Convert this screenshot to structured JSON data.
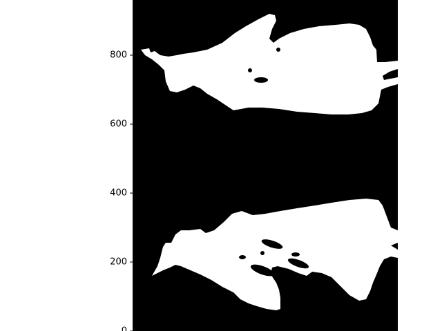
{
  "chart_data": {
    "type": "heatmap",
    "title": "",
    "xlabel": "",
    "ylabel": "",
    "colormap": [
      "#000000",
      "#ffffff"
    ],
    "ylim": [
      0,
      960
    ],
    "y_ticks": [
      {
        "value": 0,
        "label": "0"
      },
      {
        "value": 200,
        "label": "200"
      },
      {
        "value": 400,
        "label": "400"
      },
      {
        "value": 600,
        "label": "600"
      },
      {
        "value": 800,
        "label": "800"
      }
    ],
    "grid": false
  }
}
